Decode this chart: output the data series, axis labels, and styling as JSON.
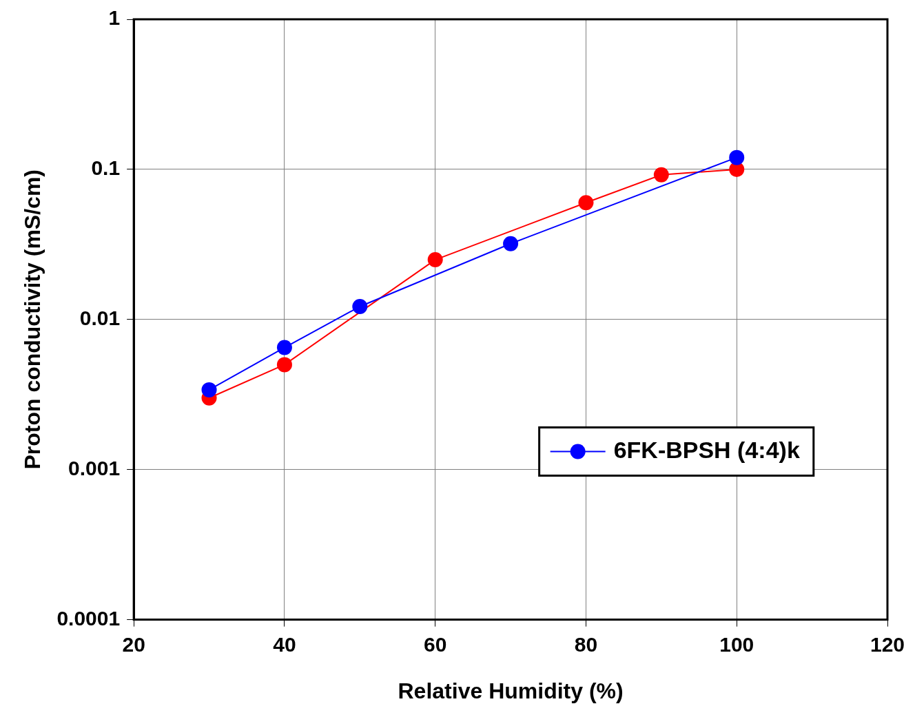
{
  "chart_data": {
    "type": "line",
    "xlabel": "Relative Humidity (%)",
    "ylabel": "Proton conductivity (mS/cm)",
    "xlim": [
      20,
      120
    ],
    "xticks": [
      20,
      40,
      60,
      80,
      100,
      120
    ],
    "ylim": [
      0.0001,
      1
    ],
    "yticks": [
      0.0001,
      0.001,
      0.01,
      0.1,
      1
    ],
    "log": "y",
    "grid": true,
    "legend": "right",
    "marker": "circle",
    "line_style": "solid",
    "series": [
      {
        "name": "6FK-BPSH (4:4)k",
        "color": "#0000ff",
        "x": [
          30,
          40,
          50,
          70,
          100
        ],
        "values": [
          0.0034,
          0.0065,
          0.0122,
          0.032,
          0.12
        ]
      },
      {
        "color": "#ff0000",
        "x": [
          30,
          40,
          60,
          80,
          90,
          100
        ],
        "values": [
          0.003,
          0.005,
          0.025,
          0.06,
          0.092,
          0.1
        ]
      }
    ]
  }
}
